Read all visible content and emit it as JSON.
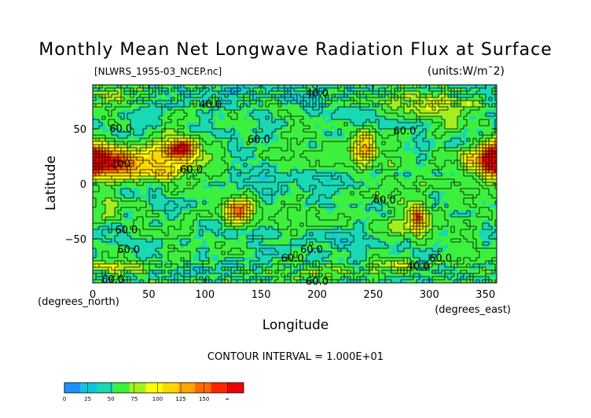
{
  "chart_data": {
    "type": "heatmap",
    "title": "Monthly Mean Net Longwave Radiation Flux at Surface",
    "file_label": "[NLWRS_1955-03_NCEP.nc]",
    "units_label": "(units:W/m¯2)",
    "xlabel": "Longitude",
    "ylabel": "Latitude",
    "x_unit_label": "(degrees_east)",
    "y_unit_label": "(degrees_north)",
    "xlim": [
      0,
      360
    ],
    "ylim": [
      -90,
      90
    ],
    "x_ticks": [
      {
        "v": 0,
        "label": "0"
      },
      {
        "v": 50,
        "label": "50"
      },
      {
        "v": 100,
        "label": "100"
      },
      {
        "v": 150,
        "label": "150"
      },
      {
        "v": 200,
        "label": "200"
      },
      {
        "v": 250,
        "label": "250"
      },
      {
        "v": 300,
        "label": "300"
      },
      {
        "v": 350,
        "label": "350"
      }
    ],
    "y_ticks": [
      {
        "v": 50,
        "label": "50"
      },
      {
        "v": 0,
        "label": "0"
      },
      {
        "v": -50,
        "label": "−50"
      }
    ],
    "contour_interval_text": "CONTOUR INTERVAL = 1.000E+01",
    "contour_interval": 10,
    "contour_labels": [
      {
        "lon": 105,
        "lat": 72,
        "text": "40.0"
      },
      {
        "lon": 200,
        "lat": 82,
        "text": "40.0"
      },
      {
        "lon": 25,
        "lat": 50,
        "text": "60.0"
      },
      {
        "lon": 148,
        "lat": 40,
        "text": "60.0"
      },
      {
        "lon": 278,
        "lat": 48,
        "text": "60.0"
      },
      {
        "lon": 25,
        "lat": 18,
        "text": "100"
      },
      {
        "lon": 88,
        "lat": 13,
        "text": "60.0"
      },
      {
        "lon": 260,
        "lat": -15,
        "text": "60.0"
      },
      {
        "lon": 30,
        "lat": -42,
        "text": "60.0"
      },
      {
        "lon": 32,
        "lat": -60,
        "text": "60.0"
      },
      {
        "lon": 178,
        "lat": -68,
        "text": "60.0"
      },
      {
        "lon": 195,
        "lat": -60,
        "text": "60.0"
      },
      {
        "lon": 290,
        "lat": -75,
        "text": "40.0"
      },
      {
        "lon": 310,
        "lat": -68,
        "text": "60.0"
      },
      {
        "lon": 18,
        "lat": -87,
        "text": "60.0"
      },
      {
        "lon": 200,
        "lat": -89,
        "text": "60.0"
      }
    ],
    "hotspots": [
      {
        "lon": 5,
        "lat": 22,
        "rlon": 20,
        "rlat": 14,
        "value": 160
      },
      {
        "lon": 30,
        "lat": 18,
        "rlon": 25,
        "rlat": 12,
        "value": 120
      },
      {
        "lon": 70,
        "lat": 28,
        "rlon": 25,
        "rlat": 14,
        "value": 115
      },
      {
        "lon": 80,
        "lat": 33,
        "rlon": 10,
        "rlat": 7,
        "value": 150
      },
      {
        "lon": 65,
        "lat": 10,
        "rlon": 12,
        "rlat": 7,
        "value": 100
      },
      {
        "lon": 243,
        "lat": 33,
        "rlon": 10,
        "rlat": 14,
        "value": 130
      },
      {
        "lon": 355,
        "lat": 22,
        "rlon": 10,
        "rlat": 13,
        "value": 155
      },
      {
        "lon": 335,
        "lat": 22,
        "rlon": 8,
        "rlat": 8,
        "value": 100
      },
      {
        "lon": 130,
        "lat": -25,
        "rlon": 12,
        "rlat": 9,
        "value": 150
      },
      {
        "lon": 290,
        "lat": -30,
        "rlon": 6,
        "rlat": 10,
        "value": 140
      },
      {
        "lon": 280,
        "lat": -40,
        "rlon": 18,
        "rlat": 10,
        "value": 90
      },
      {
        "lon": 300,
        "lat": 72,
        "rlon": 30,
        "rlat": 10,
        "value": 95
      },
      {
        "lon": 320,
        "lat": 55,
        "rlon": 15,
        "rlat": 8,
        "value": 80
      },
      {
        "lon": 20,
        "lat": 80,
        "rlon": 20,
        "rlat": 6,
        "value": 85
      },
      {
        "lon": 270,
        "lat": -73,
        "rlon": 15,
        "rlat": 5,
        "value": 90
      },
      {
        "lon": 30,
        "lat": -75,
        "rlon": 25,
        "rlat": 5,
        "value": 90
      },
      {
        "lon": 200,
        "lat": -80,
        "rlon": 30,
        "rlat": 5,
        "value": 80
      },
      {
        "lon": 15,
        "lat": -28,
        "rlon": 10,
        "rlat": 8,
        "value": 80
      }
    ],
    "coldspots": [
      {
        "lon": 170,
        "lat": -2,
        "rlon": 45,
        "rlat": 10,
        "value": 38
      },
      {
        "lon": 210,
        "lat": 5,
        "rlon": 20,
        "rlat": 7,
        "value": 40
      },
      {
        "lon": 150,
        "lat": 5,
        "rlon": 25,
        "rlat": 8,
        "value": 42
      },
      {
        "lon": 225,
        "lat": -50,
        "rlon": 30,
        "rlat": 8,
        "value": 40
      },
      {
        "lon": 160,
        "lat": -60,
        "rlon": 20,
        "rlat": 6,
        "value": 42
      },
      {
        "lon": 190,
        "lat": 75,
        "rlon": 30,
        "rlat": 7,
        "value": 42
      },
      {
        "lon": 120,
        "lat": 85,
        "rlon": 15,
        "rlat": 4,
        "value": 35
      },
      {
        "lon": 75,
        "lat": -20,
        "rlon": 20,
        "rlat": 8,
        "value": 44
      },
      {
        "lon": 10,
        "lat": -45,
        "rlon": 15,
        "rlat": 6,
        "value": 44
      },
      {
        "lon": 100,
        "lat": 50,
        "rlon": 15,
        "rlat": 8,
        "value": 44
      }
    ],
    "colorbar": {
      "colors": [
        "#1e90ff",
        "#11c5d8",
        "#19d8b4",
        "#3df03d",
        "#a4f01f",
        "#ffff00",
        "#ffd700",
        "#ffa500",
        "#ff6a00",
        "#ff2400",
        "#ee0000"
      ],
      "labels": [
        {
          "v": 0,
          "label": "0"
        },
        {
          "v": 25,
          "label": "25"
        },
        {
          "v": 50,
          "label": "50"
        },
        {
          "v": 75,
          "label": "75"
        },
        {
          "v": 100,
          "label": "100"
        },
        {
          "v": 125,
          "label": "125"
        },
        {
          "v": 150,
          "label": "150"
        },
        {
          "v": 175,
          "label": "∞"
        }
      ],
      "range": [
        0,
        175
      ]
    }
  }
}
